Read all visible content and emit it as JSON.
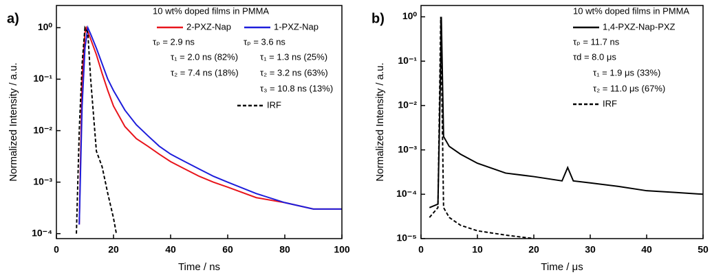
{
  "chart_data": [
    {
      "type": "line",
      "panel_label": "a)",
      "xlabel": "Time / ns",
      "ylabel": "Normalized Intensity / a.u.",
      "yscale": "log",
      "xlim": [
        0,
        100
      ],
      "xticks": [
        0,
        20,
        40,
        60,
        80,
        100
      ],
      "ylim": [
        8e-05,
        2.7
      ],
      "yticks": [
        {
          "value": 0.0001,
          "label": "10⁻⁴"
        },
        {
          "value": 0.001,
          "label": "10⁻³"
        },
        {
          "value": 0.01,
          "label": "10⁻²"
        },
        {
          "value": 0.1,
          "label": "10⁻¹"
        },
        {
          "value": 1,
          "label": "10⁰"
        }
      ],
      "legend_title": "10 wt% doped films in PMMA",
      "annotations": [
        "τₚ = 2.9 ns",
        "τₚ = 3.6 ns",
        "τ₁ = 2.0 ns (82%)",
        "τ₁ = 1.3 ns (25%)",
        "τ₂ = 7.4 ns (18%)",
        "τ₂ = 3.2 ns (63%)",
        "τ₃ = 10.8 ns (13%)"
      ],
      "series": [
        {
          "name": "2-PXZ-Nap",
          "color": "#e8141b",
          "dash": false,
          "x": [
            8,
            9,
            10,
            10.5,
            12,
            14,
            16,
            18,
            20,
            24,
            28,
            32,
            36,
            40,
            45,
            50,
            55,
            60,
            70,
            80,
            90,
            100
          ],
          "values": [
            0.00015,
            0.1,
            0.8,
            1,
            0.6,
            0.3,
            0.13,
            0.06,
            0.03,
            0.012,
            0.007,
            0.005,
            0.0035,
            0.0025,
            0.0018,
            0.0013,
            0.001,
            0.0008,
            0.0005,
            0.0004,
            0.0003,
            0.0003
          ]
        },
        {
          "name": "1-PXZ-Nap",
          "color": "#1d1ddb",
          "dash": false,
          "x": [
            8,
            9,
            10,
            11,
            12,
            14,
            16,
            18,
            20,
            24,
            28,
            32,
            36,
            40,
            45,
            50,
            55,
            60,
            70,
            80,
            90,
            100
          ],
          "values": [
            0.00015,
            0.03,
            0.4,
            1,
            0.75,
            0.4,
            0.2,
            0.1,
            0.06,
            0.025,
            0.013,
            0.008,
            0.005,
            0.0035,
            0.0025,
            0.0018,
            0.0013,
            0.001,
            0.0006,
            0.0004,
            0.0003,
            0.0003
          ]
        },
        {
          "name": "IRF",
          "color": "#000000",
          "dash": true,
          "x": [
            7,
            8,
            9,
            10,
            11,
            12,
            13,
            14,
            16,
            18,
            20,
            21
          ],
          "values": [
            0.0001,
            0.01,
            0.2,
            1,
            0.8,
            0.1,
            0.02,
            0.004,
            0.002,
            0.0006,
            0.0002,
            0.0001
          ]
        }
      ]
    },
    {
      "type": "line",
      "panel_label": "b)",
      "xlabel": "Time / μs",
      "ylabel": "Normalized Intensity / a.u.",
      "yscale": "log",
      "xlim": [
        0,
        50
      ],
      "xticks": [
        0,
        10,
        20,
        30,
        40,
        50
      ],
      "ylim": [
        1e-05,
        1.8
      ],
      "yticks": [
        {
          "value": 1e-05,
          "label": "10⁻⁵"
        },
        {
          "value": 0.0001,
          "label": "10⁻⁴"
        },
        {
          "value": 0.001,
          "label": "10⁻³"
        },
        {
          "value": 0.01,
          "label": "10⁻²"
        },
        {
          "value": 0.1,
          "label": "10⁻¹"
        },
        {
          "value": 1,
          "label": "10⁰"
        }
      ],
      "legend_title": "10 wt% doped films in PMMA",
      "annotations": [
        "τₚ = 11.7 ns",
        "τd = 8.0 μs",
        "τ₁ = 1.9 μs (33%)",
        "τ₂ = 11.0 μs (67%)"
      ],
      "series": [
        {
          "name": "1,4-PXZ-Nap-PXZ",
          "color": "#000000",
          "dash": false,
          "x": [
            1.5,
            3,
            3.5,
            3.6,
            4,
            5,
            7,
            10,
            15,
            20,
            25,
            26,
            27,
            30,
            35,
            40,
            45,
            50
          ],
          "values": [
            5e-05,
            6e-05,
            0.1,
            1,
            0.002,
            0.0012,
            0.0008,
            0.0005,
            0.0003,
            0.00025,
            0.0002,
            0.0004,
            0.0002,
            0.00018,
            0.00015,
            0.00012,
            0.00011,
            0.0001
          ]
        },
        {
          "name": "IRF",
          "color": "#000000",
          "dash": true,
          "x": [
            1.5,
            3,
            3.5,
            4,
            5,
            7,
            10,
            15,
            20
          ],
          "values": [
            3e-05,
            5e-05,
            1,
            5e-05,
            3e-05,
            2e-05,
            1.5e-05,
            1.2e-05,
            1e-05
          ]
        }
      ]
    }
  ]
}
